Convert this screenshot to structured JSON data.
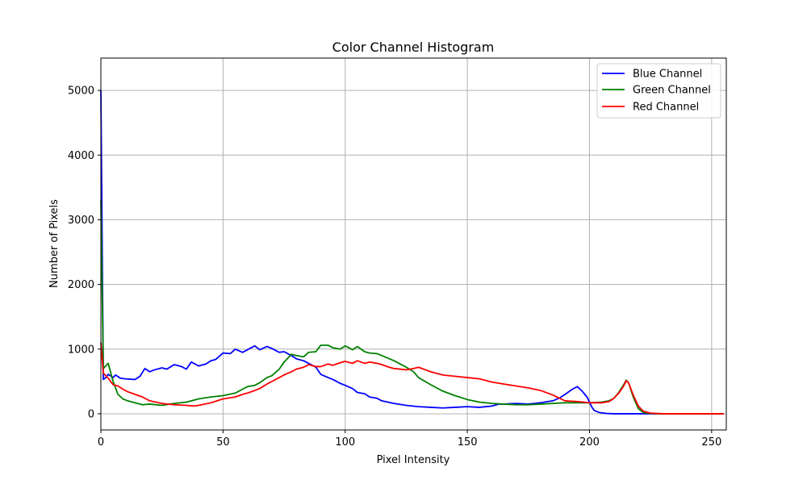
{
  "chart_data": {
    "type": "line",
    "title": "Color Channel Histogram",
    "xlabel": "Pixel Intensity",
    "ylabel": "Number of Pixels",
    "xlim": [
      0,
      256
    ],
    "ylim": [
      -250,
      5500
    ],
    "xticks": [
      0,
      50,
      100,
      150,
      200,
      250
    ],
    "yticks": [
      0,
      1000,
      2000,
      3000,
      4000,
      5000
    ],
    "grid": true,
    "legend_position": "top-right",
    "series": [
      {
        "name": "Blue Channel",
        "color": "#0000ff",
        "x": [
          0,
          1,
          2,
          3,
          5,
          6,
          8,
          10,
          14,
          16,
          18,
          20,
          22,
          25,
          27,
          30,
          33,
          35,
          37,
          40,
          43,
          45,
          47,
          50,
          53,
          55,
          58,
          61,
          63,
          65,
          68,
          70,
          73,
          75,
          78,
          80,
          83,
          85,
          88,
          90,
          93,
          95,
          98,
          100,
          103,
          105,
          108,
          110,
          113,
          115,
          120,
          125,
          130,
          135,
          140,
          145,
          150,
          155,
          160,
          163,
          165,
          170,
          175,
          180,
          183,
          185,
          188,
          190,
          193,
          195,
          197,
          199,
          201,
          202,
          204,
          207,
          210,
          215,
          220,
          230,
          240,
          255
        ],
        "y": [
          5000,
          530,
          560,
          610,
          560,
          600,
          550,
          540,
          530,
          580,
          700,
          650,
          680,
          710,
          690,
          760,
          730,
          690,
          800,
          740,
          770,
          820,
          840,
          940,
          930,
          1000,
          950,
          1010,
          1050,
          990,
          1040,
          1010,
          950,
          960,
          900,
          850,
          820,
          780,
          720,
          610,
          560,
          530,
          470,
          440,
          390,
          330,
          310,
          260,
          240,
          200,
          160,
          130,
          110,
          100,
          90,
          100,
          110,
          100,
          120,
          150,
          150,
          160,
          150,
          170,
          190,
          200,
          250,
          300,
          380,
          420,
          350,
          260,
          100,
          50,
          20,
          5,
          0,
          0,
          0,
          0,
          0,
          0
        ]
      },
      {
        "name": "Green Channel",
        "color": "#008000",
        "x": [
          0,
          1,
          3,
          5,
          7,
          9,
          11,
          14,
          17,
          20,
          25,
          30,
          35,
          38,
          40,
          45,
          50,
          55,
          58,
          60,
          63,
          65,
          68,
          70,
          73,
          75,
          78,
          80,
          83,
          85,
          88,
          90,
          93,
          95,
          98,
          100,
          103,
          105,
          108,
          110,
          113,
          115,
          120,
          125,
          128,
          130,
          135,
          140,
          145,
          150,
          155,
          160,
          165,
          170,
          175,
          180,
          185,
          190,
          195,
          200,
          205,
          208,
          210,
          212,
          214,
          215,
          216,
          218,
          220,
          222,
          225,
          230,
          240,
          255
        ],
        "y": [
          3300,
          700,
          780,
          500,
          300,
          230,
          200,
          170,
          140,
          150,
          130,
          160,
          180,
          210,
          230,
          260,
          280,
          320,
          380,
          420,
          440,
          480,
          560,
          590,
          690,
          800,
          920,
          900,
          880,
          950,
          960,
          1060,
          1060,
          1020,
          1000,
          1050,
          990,
          1040,
          960,
          940,
          930,
          900,
          820,
          720,
          650,
          560,
          450,
          350,
          280,
          220,
          180,
          160,
          150,
          140,
          140,
          150,
          160,
          170,
          170,
          170,
          180,
          200,
          240,
          330,
          450,
          520,
          480,
          250,
          80,
          20,
          5,
          0,
          0,
          0
        ]
      },
      {
        "name": "Red Channel",
        "color": "#ff0000",
        "x": [
          0,
          1,
          3,
          5,
          7,
          9,
          11,
          14,
          17,
          20,
          25,
          30,
          35,
          38,
          40,
          45,
          50,
          55,
          58,
          60,
          63,
          65,
          68,
          70,
          73,
          75,
          78,
          80,
          83,
          85,
          88,
          90,
          93,
          95,
          98,
          100,
          103,
          105,
          108,
          110,
          113,
          115,
          118,
          120,
          125,
          128,
          130,
          135,
          140,
          145,
          150,
          155,
          160,
          165,
          170,
          175,
          180,
          185,
          190,
          195,
          200,
          205,
          208,
          210,
          212,
          214,
          215,
          216,
          218,
          220,
          222,
          225,
          230,
          240,
          255
        ],
        "y": [
          1100,
          630,
          550,
          450,
          430,
          380,
          340,
          300,
          260,
          200,
          160,
          140,
          130,
          120,
          130,
          170,
          230,
          260,
          300,
          320,
          360,
          390,
          460,
          500,
          560,
          600,
          650,
          690,
          720,
          760,
          730,
          730,
          770,
          750,
          790,
          810,
          780,
          820,
          780,
          800,
          780,
          760,
          720,
          700,
          680,
          700,
          720,
          650,
          600,
          580,
          560,
          540,
          490,
          460,
          430,
          400,
          360,
          290,
          200,
          190,
          170,
          170,
          190,
          240,
          320,
          430,
          510,
          480,
          280,
          120,
          40,
          10,
          0,
          0,
          0
        ]
      }
    ]
  }
}
